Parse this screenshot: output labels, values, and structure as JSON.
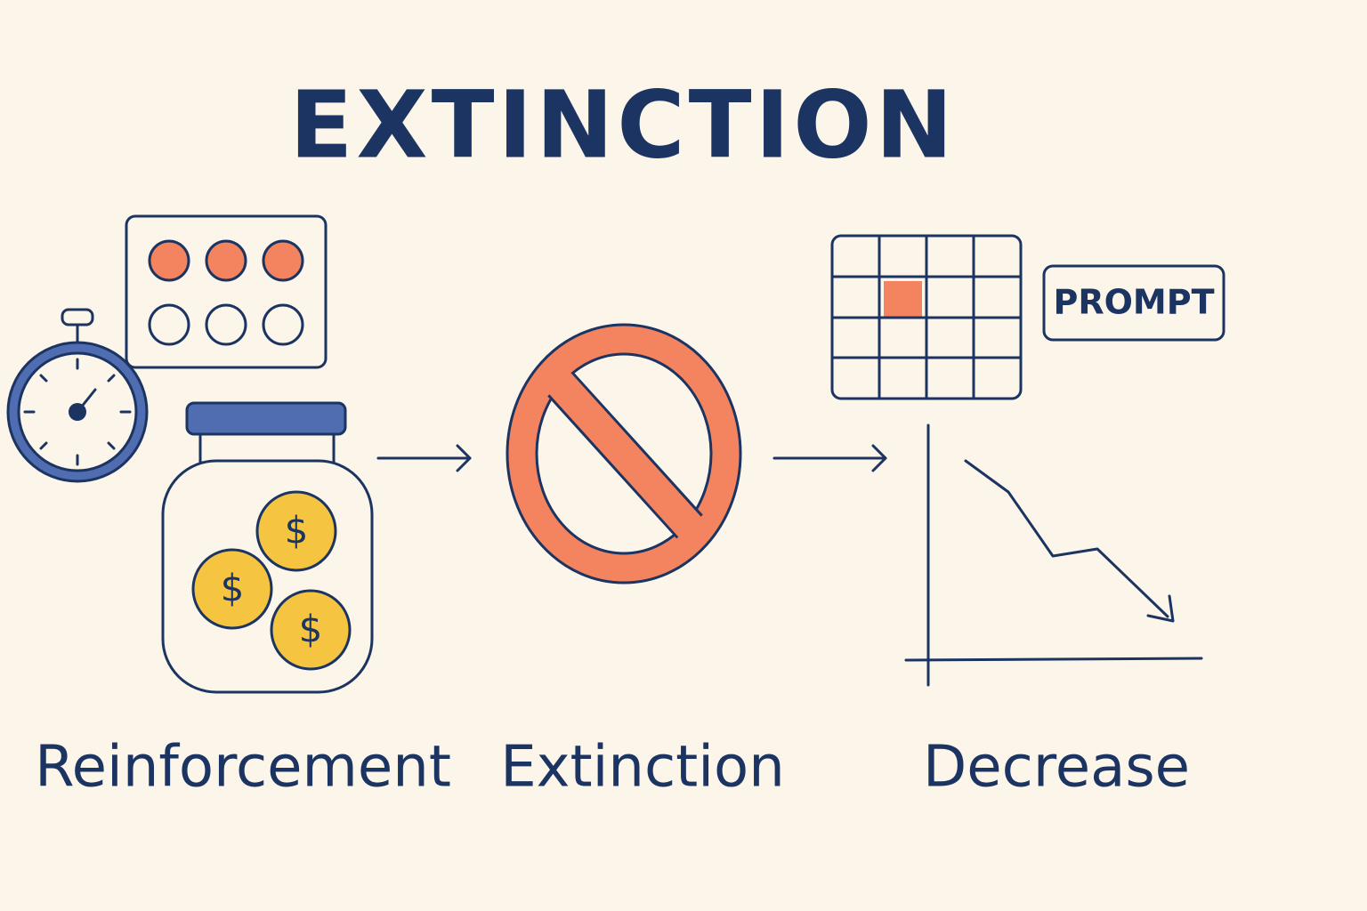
{
  "header": {
    "title": "EXTINCTION"
  },
  "coins": [
    "$",
    "$",
    "$"
  ],
  "prompt": "PROMPT",
  "labels": [
    "Reinforcement",
    "Extinction",
    "Decrease"
  ]
}
